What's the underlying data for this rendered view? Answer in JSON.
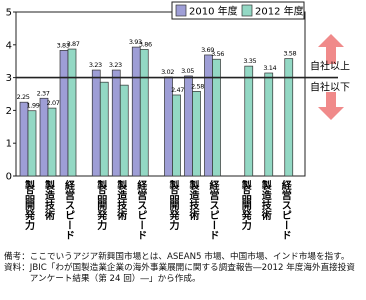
{
  "chart_data": {
    "type": "bar",
    "categories": [
      "製品開発力",
      "製造技術",
      "経営スピード",
      "製品開発力",
      "製造技術",
      "経営スピード",
      "製品開発力",
      "製造技術",
      "経営スピード",
      "製品開発力",
      "製造技術",
      "経営スピード"
    ],
    "series": [
      {
        "name": "2010 年度",
        "color": "#9e9ed6",
        "values": [
          2.25,
          2.37,
          3.83,
          3.23,
          3.23,
          3.93,
          3.02,
          3.05,
          3.69,
          null,
          null,
          null
        ],
        "value_labels": [
          "2.25",
          "2.37",
          "3.83",
          "3.23",
          "3.23",
          "3.93",
          "3.02",
          "3.05",
          "3.69",
          null,
          null,
          null
        ]
      },
      {
        "name": "2012 年度",
        "color": "#93d8c4",
        "values": [
          1.99,
          2.07,
          3.87,
          2.86,
          2.77,
          3.86,
          2.47,
          2.58,
          3.56,
          3.35,
          3.14,
          3.58
        ],
        "value_labels": [
          "1.99",
          "2.07",
          "3.87",
          null,
          null,
          "3.86",
          "2.47",
          "2.58",
          "3.56",
          "3.35",
          "3.14",
          "3.58"
        ]
      }
    ],
    "ylim": [
      0,
      5
    ],
    "yticks": [
      0,
      1,
      2,
      3,
      4,
      5
    ],
    "reference_line": 3,
    "annotations": [
      "自社以上",
      "自社以下"
    ]
  },
  "notes": [
    {
      "label": "備考：",
      "text": "ここでいうアジア新興国市場とは、ASEAN5 市場、中国市場、インド市場を指す。"
    },
    {
      "label": "資料：",
      "text": "JBIC「わが国製造業企業の海外事業展開に関する調査報告―2012 年度海外直接投資アンケート結果（第 24 回）―」から作成。"
    }
  ]
}
